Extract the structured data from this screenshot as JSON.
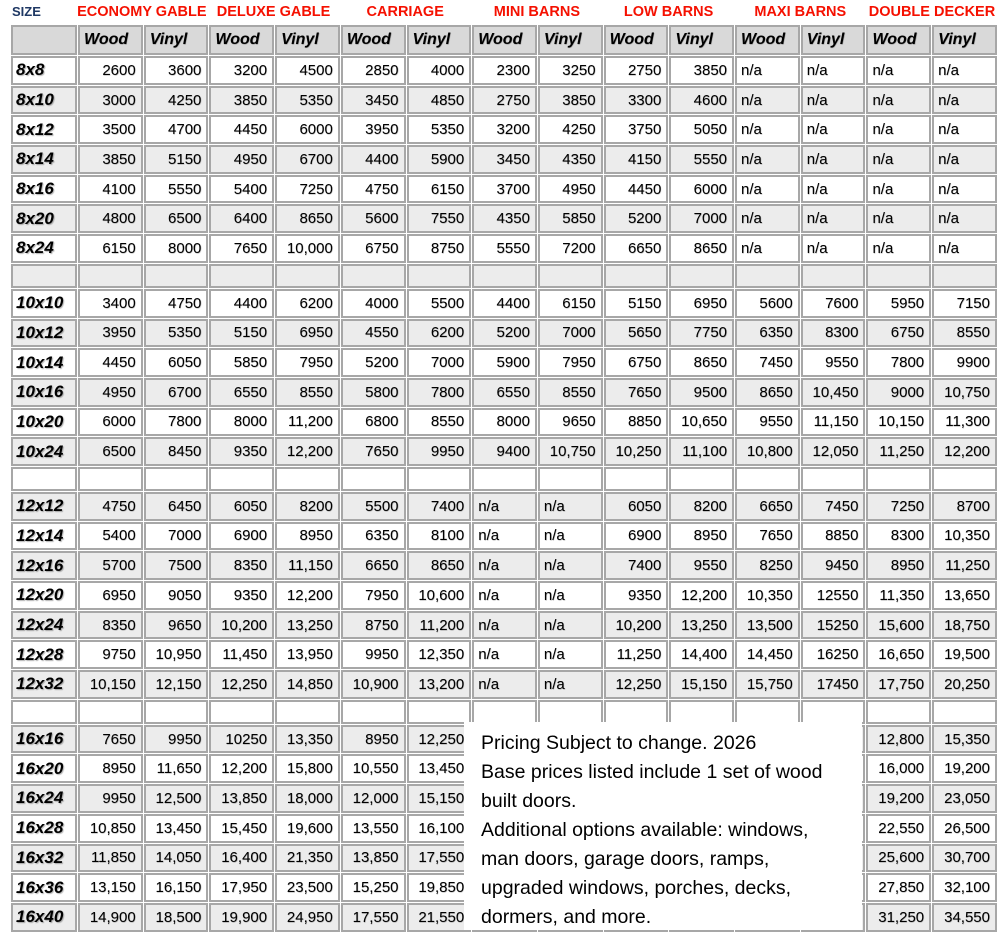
{
  "title_row": {
    "size_label": "SIZE",
    "categories": [
      "ECONOMY GABLE",
      "DELUXE GABLE",
      "CARRIAGE",
      "MINI BARNS",
      "LOW BARNS",
      "MAXI BARNS",
      "DOUBLE DECKER"
    ]
  },
  "table": {
    "sub_headers": [
      "Wood",
      "Vinyl"
    ],
    "rows": [
      {
        "size": "8x8",
        "values": [
          "2600",
          "3600",
          "3200",
          "4500",
          "2850",
          "4000",
          "2300",
          "3250",
          "2750",
          "3850",
          "n/a",
          "n/a",
          "n/a",
          "n/a"
        ]
      },
      {
        "size": "8x10",
        "values": [
          "3000",
          "4250",
          "3850",
          "5350",
          "3450",
          "4850",
          "2750",
          "3850",
          "3300",
          "4600",
          "n/a",
          "n/a",
          "n/a",
          "n/a"
        ]
      },
      {
        "size": "8x12",
        "values": [
          "3500",
          "4700",
          "4450",
          "6000",
          "3950",
          "5350",
          "3200",
          "4250",
          "3750",
          "5050",
          "n/a",
          "n/a",
          "n/a",
          "n/a"
        ]
      },
      {
        "size": "8x14",
        "values": [
          "3850",
          "5150",
          "4950",
          "6700",
          "4400",
          "5900",
          "3450",
          "4350",
          "4150",
          "5550",
          "n/a",
          "n/a",
          "n/a",
          "n/a"
        ]
      },
      {
        "size": "8x16",
        "values": [
          "4100",
          "5550",
          "5400",
          "7250",
          "4750",
          "6150",
          "3700",
          "4950",
          "4450",
          "6000",
          "n/a",
          "n/a",
          "n/a",
          "n/a"
        ]
      },
      {
        "size": "8x20",
        "values": [
          "4800",
          "6500",
          "6400",
          "8650",
          "5600",
          "7550",
          "4350",
          "5850",
          "5200",
          "7000",
          "n/a",
          "n/a",
          "n/a",
          "n/a"
        ]
      },
      {
        "size": "8x24",
        "values": [
          "6150",
          "8000",
          "7650",
          "10,000",
          "6750",
          "8750",
          "5550",
          "7200",
          "6650",
          "8650",
          "n/a",
          "n/a",
          "n/a",
          "n/a"
        ]
      },
      {
        "blank": true,
        "size": "",
        "values": [
          "",
          "",
          "",
          "",
          "",
          "",
          "",
          "",
          "",
          "",
          "",
          "",
          "",
          ""
        ]
      },
      {
        "size": "10x10",
        "values": [
          "3400",
          "4750",
          "4400",
          "6200",
          "4000",
          "5500",
          "4400",
          "6150",
          "5150",
          "6950",
          "5600",
          "7600",
          "5950",
          "7150"
        ]
      },
      {
        "size": "10x12",
        "values": [
          "3950",
          "5350",
          "5150",
          "6950",
          "4550",
          "6200",
          "5200",
          "7000",
          "5650",
          "7750",
          "6350",
          "8300",
          "6750",
          "8550"
        ]
      },
      {
        "size": "10x14",
        "values": [
          "4450",
          "6050",
          "5850",
          "7950",
          "5200",
          "7000",
          "5900",
          "7950",
          "6750",
          "8650",
          "7450",
          "9550",
          "7800",
          "9900"
        ]
      },
      {
        "size": "10x16",
        "values": [
          "4950",
          "6700",
          "6550",
          "8550",
          "5800",
          "7800",
          "6550",
          "8550",
          "7650",
          "9500",
          "8650",
          "10,450",
          "9000",
          "10,750"
        ]
      },
      {
        "size": "10x20",
        "values": [
          "6000",
          "7800",
          "8000",
          "11,200",
          "6800",
          "8550",
          "8000",
          "9650",
          "8850",
          "10,650",
          "9550",
          "11,150",
          "10,150",
          "11,300"
        ]
      },
      {
        "size": "10x24",
        "values": [
          "6500",
          "8450",
          "9350",
          "12,200",
          "7650",
          "9950",
          "9400",
          "10,750",
          "10,250",
          "11,100",
          "10,800",
          "12,050",
          "11,250",
          "12,200"
        ]
      },
      {
        "blank": true,
        "size": "",
        "values": [
          "",
          "",
          "",
          "",
          "",
          "",
          "",
          "",
          "",
          "",
          "",
          "",
          "",
          ""
        ]
      },
      {
        "size": "12x12",
        "values": [
          "4750",
          "6450",
          "6050",
          "8200",
          "5500",
          "7400",
          "n/a",
          "n/a",
          "6050",
          "8200",
          "6650",
          "7450",
          "7250",
          "8700"
        ]
      },
      {
        "size": "12x14",
        "values": [
          "5400",
          "7000",
          "6900",
          "8950",
          "6350",
          "8100",
          "n/a",
          "n/a",
          "6900",
          "8950",
          "7650",
          "8850",
          "8300",
          "10,350"
        ]
      },
      {
        "size": "12x16",
        "values": [
          "5700",
          "7500",
          "8350",
          "11,150",
          "6650",
          "8650",
          "n/a",
          "n/a",
          "7400",
          "9550",
          "8250",
          "9450",
          "8950",
          "11,250"
        ]
      },
      {
        "size": "12x20",
        "values": [
          "6950",
          "9050",
          "9350",
          "12,200",
          "7950",
          "10,600",
          "n/a",
          "n/a",
          "9350",
          "12,200",
          "10,350",
          "12550",
          "11,350",
          "13,650"
        ]
      },
      {
        "size": "12x24",
        "values": [
          "8350",
          "9650",
          "10,200",
          "13,250",
          "8750",
          "11,200",
          "n/a",
          "n/a",
          "10,200",
          "13,250",
          "13,500",
          "15250",
          "15,600",
          "18,750"
        ]
      },
      {
        "size": "12x28",
        "values": [
          "9750",
          "10,950",
          "11,450",
          "13,950",
          "9950",
          "12,350",
          "n/a",
          "n/a",
          "11,250",
          "14,400",
          "14,450",
          "16250",
          "16,650",
          "19,500"
        ]
      },
      {
        "size": "12x32",
        "values": [
          "10,150",
          "12,150",
          "12,250",
          "14,850",
          "10,900",
          "13,200",
          "n/a",
          "n/a",
          "12,250",
          "15,150",
          "15,750",
          "17450",
          "17,750",
          "20,250"
        ]
      },
      {
        "blank": true,
        "size": "",
        "values": [
          "",
          "",
          "",
          "",
          "",
          "",
          "",
          "",
          "",
          "",
          "",
          "",
          "",
          ""
        ]
      },
      {
        "size": "16x16",
        "values": [
          "7650",
          "9950",
          "10250",
          "13,350",
          "8950",
          "12,250",
          "",
          "",
          "",
          "",
          "",
          "",
          "12,800",
          "15,350"
        ]
      },
      {
        "size": "16x20",
        "values": [
          "8950",
          "11,650",
          "12,200",
          "15,800",
          "10,550",
          "13,450",
          "",
          "",
          "",
          "",
          "",
          "",
          "16,000",
          "19,200"
        ]
      },
      {
        "size": "16x24",
        "values": [
          "9950",
          "12,500",
          "13,850",
          "18,000",
          "12,000",
          "15,150",
          "",
          "",
          "",
          "",
          "",
          "",
          "19,200",
          "23,050"
        ]
      },
      {
        "size": "16x28",
        "values": [
          "10,850",
          "13,450",
          "15,450",
          "19,600",
          "13,550",
          "16,100",
          "",
          "",
          "",
          "",
          "",
          "",
          "22,550",
          "26,500"
        ]
      },
      {
        "size": "16x32",
        "values": [
          "11,850",
          "14,050",
          "16,400",
          "21,350",
          "13,850",
          "17,550",
          "",
          "",
          "",
          "",
          "",
          "",
          "25,600",
          "30,700"
        ]
      },
      {
        "size": "16x36",
        "values": [
          "13,150",
          "16,150",
          "17,950",
          "23,500",
          "15,250",
          "19,850",
          "",
          "",
          "",
          "",
          "",
          "",
          "27,850",
          "32,100"
        ]
      },
      {
        "size": "16x40",
        "values": [
          "14,900",
          "18,500",
          "19,900",
          "24,950",
          "17,550",
          "21,550",
          "",
          "",
          "",
          "",
          "",
          "",
          "31,250",
          "34,550"
        ]
      }
    ]
  },
  "overlay": {
    "lines": [
      "Pricing Subject to change. 2026",
      "Base prices listed include 1 set of wood",
      "built doors.",
      "Additional options available: windows,",
      "man doors, garage doors, ramps,",
      "upgraded windows, porches, decks,",
      "dormers, and more."
    ]
  },
  "colors": {
    "category_red": "#f51000",
    "size_navy": "#1f3864",
    "grid_border_gray": "#a7a7a7",
    "row_stripe_gray": "#ececec",
    "header_fill_gray": "#d9d9d9"
  }
}
